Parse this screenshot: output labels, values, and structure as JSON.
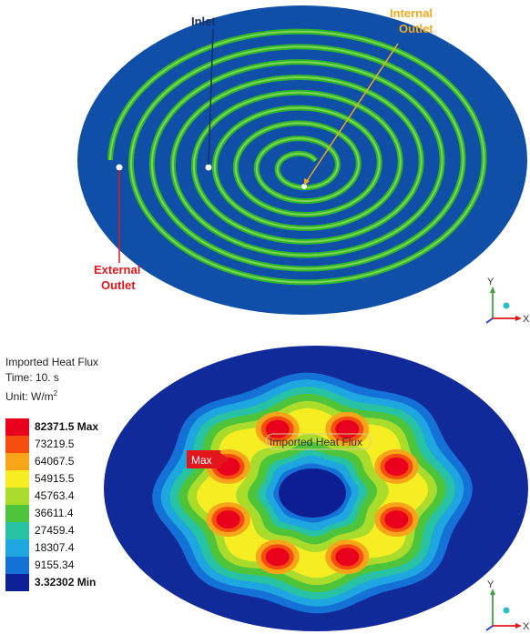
{
  "top_figure": {
    "labels": {
      "inlet": "Inlet",
      "internal_outlet_1": "Internal",
      "internal_outlet_2": "Outlet",
      "external_outlet_1": "External",
      "external_outlet_2": "Outlet"
    },
    "colors": {
      "disk": "#0f4fa8",
      "channel": "#31b52c",
      "channel_highlight": "#8ee05a",
      "inlet_label": "#16305f",
      "internal_outlet_label": "#f3a81d",
      "external_outlet_label": "#e3161b"
    },
    "axis": {
      "y": "Y",
      "x": "X"
    }
  },
  "bottom_figure": {
    "legend": {
      "title": "Imported Heat Flux",
      "time": "Time: 10. s",
      "unit_prefix": "Unit: W/m",
      "unit_sup": "2",
      "levels": [
        {
          "label": "82371.5 Max",
          "color": "#e8001c",
          "bold": true
        },
        {
          "label": "73219.5",
          "color": "#f54d0f",
          "bold": false
        },
        {
          "label": "64067.5",
          "color": "#f9a51a",
          "bold": false
        },
        {
          "label": "54915.5",
          "color": "#f6ee22",
          "bold": false
        },
        {
          "label": "45763.4",
          "color": "#a9dc2b",
          "bold": false
        },
        {
          "label": "36611.4",
          "color": "#4dc43a",
          "bold": false
        },
        {
          "label": "27459.4",
          "color": "#26c2a3",
          "bold": false
        },
        {
          "label": "18307.4",
          "color": "#1ea6e0",
          "bold": false
        },
        {
          "label": "9155.34",
          "color": "#1472d6",
          "bold": false
        },
        {
          "label": "3.32302 Min",
          "color": "#0f1f96",
          "bold": true
        }
      ]
    },
    "max_tag": "Max",
    "probe_label": "Imported Heat Flux",
    "axis": {
      "y": "Y",
      "x": "X"
    }
  }
}
